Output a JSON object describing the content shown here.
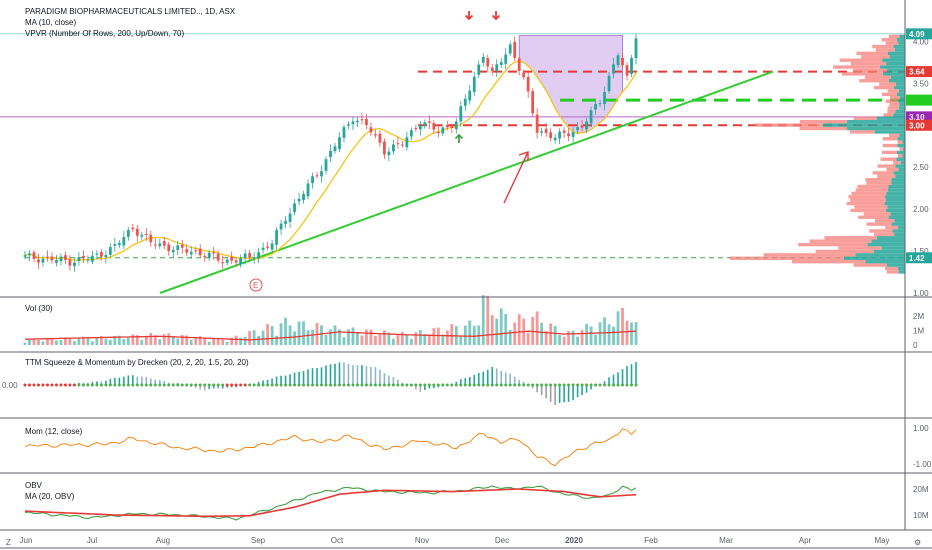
{
  "header": {
    "title": "PARADIGM BIOPHARMACEUTICALS LIMITED.., 1D, ASX",
    "ma_label": "MA (10, close)",
    "vpvr_label": "VPVR (Number Of Rows, 200, Up/Down, 70)"
  },
  "panes": {
    "vol_label": "Vol (30)",
    "ttm_label": "TTM Squeeze & Momentum by Drecken (20, 2, 20, 1.5, 20, 20)",
    "mom_label": "Mom (12, close)",
    "obv_label": "OBV",
    "obv_ma_label": "MA (20, OBV)"
  },
  "corner_left": "Z",
  "corner_right": "⚙",
  "earnings_marker": "E",
  "colors": {
    "up": "#26a69a",
    "down": "#ef5350",
    "ma": "#f5c518",
    "trend": "#33cc33",
    "resistance": "#e53935",
    "support_green": "#22cc22",
    "cup_fill": "#c9a3e8",
    "vp_up": "#26a69a",
    "vp_down": "#f77f79"
  },
  "price_tags": [
    {
      "text": "4.09",
      "value": 4.09,
      "color": "#26a69a"
    },
    {
      "text": "3.64",
      "value": 3.64,
      "color": "#e53935"
    },
    {
      "text": "",
      "value": 3.3,
      "color": "#22cc22"
    },
    {
      "text": "3.10",
      "value": 3.1,
      "color": "#9c27b0"
    },
    {
      "text": "3.00",
      "value": 3.0,
      "color": "#e53935"
    },
    {
      "text": "1.42",
      "value": 1.42,
      "color": "#26a69a"
    }
  ],
  "chart_data": {
    "type": "candlestick",
    "x_axis": {
      "ticks": [
        "Jun",
        "Jul",
        "Aug",
        "Sep",
        "Oct",
        "Nov",
        "Dec",
        "2020",
        "Feb",
        "Mar",
        "Apr",
        "May"
      ]
    },
    "price_axis": {
      "ticks": [
        "4.00",
        "3.50",
        "3.00",
        "2.50",
        "2.00",
        "1.50",
        "1.00"
      ],
      "range": [
        1.0,
        4.1
      ]
    },
    "levels": {
      "resistance_dashed": [
        3.64,
        3.0
      ],
      "support_green_dashed": 3.3,
      "support_long_dashed": 1.42,
      "purple_line": 3.1,
      "top_line": 4.09
    },
    "trendline": {
      "from": [
        "Aug end",
        1.0
      ],
      "to": [
        "Mar mid",
        3.64
      ]
    },
    "volume_axis": {
      "ticks": [
        "2M",
        "1M",
        "0"
      ]
    },
    "ttm_axis": {
      "ticks": [
        "0.00"
      ]
    },
    "mom_axis": {
      "ticks": [
        "1.00",
        "-1.00"
      ]
    },
    "obv_axis": {
      "ticks": [
        "20M",
        "10M"
      ]
    },
    "price_anchors": [
      [
        0,
        1.43
      ],
      [
        10,
        1.38
      ],
      [
        15,
        1.42
      ],
      [
        20,
        1.55
      ],
      [
        24,
        1.78
      ],
      [
        28,
        1.6
      ],
      [
        34,
        1.52
      ],
      [
        40,
        1.47
      ],
      [
        44,
        1.38
      ],
      [
        50,
        1.42
      ],
      [
        55,
        1.6
      ],
      [
        58,
        1.9
      ],
      [
        62,
        2.2
      ],
      [
        66,
        2.5
      ],
      [
        70,
        2.85
      ],
      [
        73,
        3.1
      ],
      [
        76,
        3.0
      ],
      [
        80,
        2.7
      ],
      [
        84,
        2.78
      ],
      [
        88,
        3.05
      ],
      [
        92,
        2.92
      ],
      [
        96,
        3.05
      ],
      [
        98,
        3.3
      ],
      [
        102,
        3.85
      ],
      [
        104,
        3.6
      ],
      [
        108,
        3.95
      ],
      [
        111,
        3.55
      ],
      [
        114,
        2.95
      ],
      [
        118,
        2.85
      ],
      [
        124,
        2.98
      ],
      [
        128,
        3.3
      ],
      [
        132,
        3.85
      ],
      [
        134,
        3.55
      ],
      [
        136,
        4.09
      ]
    ],
    "volume_anchors": [
      [
        0,
        0.3
      ],
      [
        20,
        0.45
      ],
      [
        30,
        0.6
      ],
      [
        45,
        0.3
      ],
      [
        58,
        1.3
      ],
      [
        70,
        0.9
      ],
      [
        85,
        0.6
      ],
      [
        100,
        1.2
      ],
      [
        102,
        2.6
      ],
      [
        108,
        1.4
      ],
      [
        114,
        1.6
      ],
      [
        120,
        0.6
      ],
      [
        130,
        1.4
      ],
      [
        134,
        2.0
      ],
      [
        136,
        1.1
      ]
    ],
    "volume_ma_anchors": [
      [
        0,
        0.4
      ],
      [
        30,
        0.6
      ],
      [
        50,
        0.35
      ],
      [
        60,
        0.55
      ],
      [
        70,
        0.9
      ],
      [
        85,
        0.7
      ],
      [
        100,
        0.6
      ],
      [
        112,
        0.95
      ],
      [
        120,
        0.75
      ],
      [
        130,
        0.85
      ],
      [
        136,
        0.95
      ]
    ],
    "ttm_anchors": [
      [
        0,
        -0.05
      ],
      [
        15,
        0.1
      ],
      [
        24,
        0.4
      ],
      [
        34,
        0.05
      ],
      [
        40,
        -0.2
      ],
      [
        48,
        -0.05
      ],
      [
        58,
        0.4
      ],
      [
        70,
        0.9
      ],
      [
        78,
        0.7
      ],
      [
        84,
        0.1
      ],
      [
        88,
        -0.25
      ],
      [
        94,
        0.0
      ],
      [
        100,
        0.4
      ],
      [
        104,
        0.7
      ],
      [
        108,
        0.45
      ],
      [
        112,
        0.0
      ],
      [
        118,
        -0.8
      ],
      [
        122,
        -0.6
      ],
      [
        126,
        -0.2
      ],
      [
        130,
        0.3
      ],
      [
        136,
        0.95
      ]
    ],
    "mom_anchors": [
      [
        0,
        0.0
      ],
      [
        18,
        0.1
      ],
      [
        24,
        0.4
      ],
      [
        34,
        -0.1
      ],
      [
        44,
        -0.3
      ],
      [
        52,
        0.0
      ],
      [
        60,
        0.5
      ],
      [
        66,
        0.2
      ],
      [
        72,
        0.55
      ],
      [
        80,
        -0.2
      ],
      [
        88,
        0.3
      ],
      [
        96,
        -0.1
      ],
      [
        102,
        0.7
      ],
      [
        106,
        0.2
      ],
      [
        110,
        0.4
      ],
      [
        114,
        -0.6
      ],
      [
        118,
        -1.0
      ],
      [
        122,
        -0.4
      ],
      [
        126,
        0.1
      ],
      [
        130,
        0.3
      ],
      [
        133,
        1.0
      ],
      [
        135,
        0.6
      ],
      [
        136,
        0.95
      ]
    ],
    "obv_anchors": [
      [
        0,
        11.0
      ],
      [
        15,
        9.0
      ],
      [
        25,
        10.5
      ],
      [
        35,
        10.0
      ],
      [
        47,
        8.5
      ],
      [
        55,
        12.5
      ],
      [
        65,
        18.5
      ],
      [
        72,
        20.5
      ],
      [
        80,
        19.0
      ],
      [
        90,
        18.5
      ],
      [
        98,
        19.5
      ],
      [
        104,
        21.0
      ],
      [
        108,
        20.0
      ],
      [
        114,
        21.0
      ],
      [
        120,
        18.0
      ],
      [
        126,
        16.5
      ],
      [
        130,
        17.5
      ],
      [
        133,
        21.0
      ],
      [
        135,
        19.5
      ],
      [
        136,
        20.5
      ]
    ],
    "obv_ma_anchors": [
      [
        0,
        11.5
      ],
      [
        20,
        10.0
      ],
      [
        40,
        9.5
      ],
      [
        50,
        9.7
      ],
      [
        60,
        13.0
      ],
      [
        70,
        18.0
      ],
      [
        80,
        19.5
      ],
      [
        95,
        19.0
      ],
      [
        110,
        20.0
      ],
      [
        120,
        19.0
      ],
      [
        128,
        17.0
      ],
      [
        136,
        17.8
      ]
    ]
  }
}
